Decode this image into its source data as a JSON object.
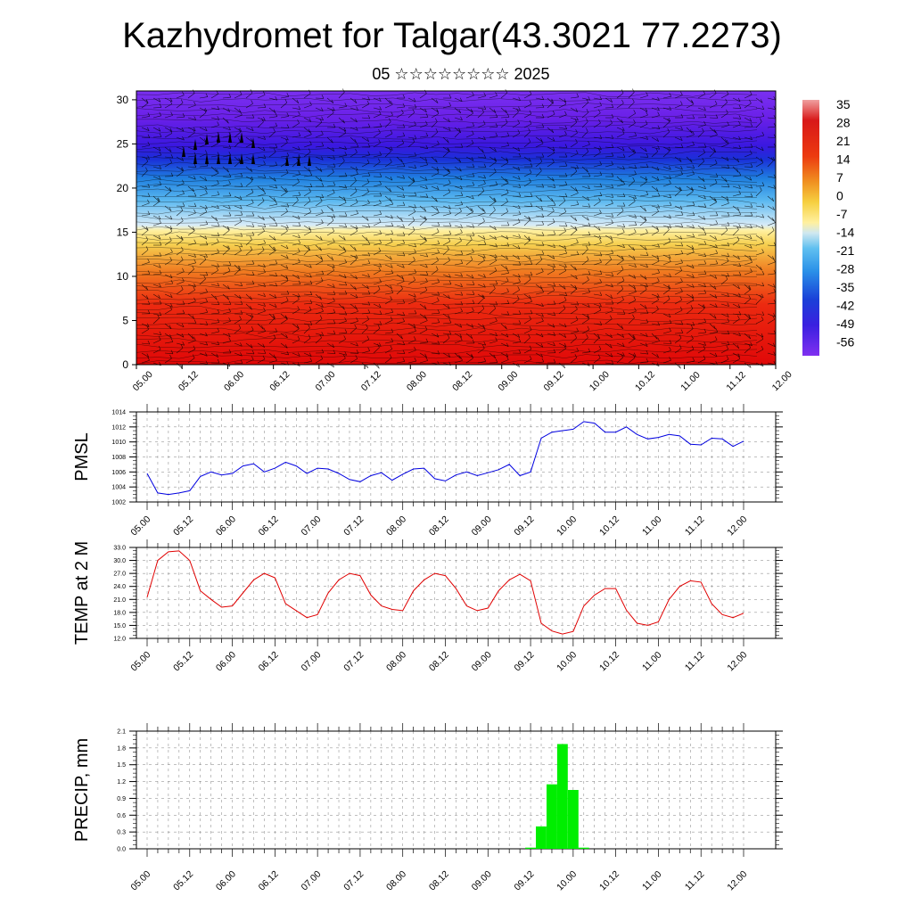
{
  "title": "Kazhydromet for Talgar(43.3021 77.2273)",
  "subtitle": "05 ☆☆☆☆☆☆☆☆ 2025",
  "time_ticks": [
    "05.00",
    "05.12",
    "06.00",
    "06.12",
    "07.00",
    "07.12",
    "08.00",
    "08.12",
    "09.00",
    "09.12",
    "10.00",
    "10.12",
    "11.00",
    "11.12",
    "12.00"
  ],
  "chart_data": [
    {
      "type": "heatmap",
      "name_hint": "temperature-height cross section with wind barbs",
      "x_ticks": [
        "05.00",
        "05.12",
        "06.00",
        "06.12",
        "07.00",
        "07.12",
        "08.00",
        "08.12",
        "09.00",
        "09.12",
        "10.00",
        "10.12",
        "11.00",
        "11.12",
        "12.00"
      ],
      "y_ticks": [
        0,
        5,
        10,
        15,
        20,
        25,
        30
      ],
      "ylim": [
        0,
        31
      ],
      "colorbar_labels": [
        "35",
        "28",
        "21",
        "14",
        "7",
        "0",
        "-7",
        "-14",
        "-21",
        "-28",
        "-35",
        "-42",
        "-49",
        "-56"
      ],
      "colors": {
        "hot": "#e01010",
        "mid": "#f0e060",
        "cold": "#20a0e0",
        "coldest": "#7020e0"
      }
    },
    {
      "type": "line",
      "ylabel": "PMSL",
      "ylim": [
        1002,
        1014
      ],
      "y_ticks": [
        "1002",
        "1004",
        "1006",
        "1008",
        "1010",
        "1012",
        "1014"
      ],
      "x_ticks": [
        "05.00",
        "05.12",
        "06.00",
        "06.12",
        "07.00",
        "07.12",
        "08.00",
        "08.12",
        "09.00",
        "09.12",
        "10.00",
        "10.12",
        "11.00",
        "11.12",
        "12.00"
      ],
      "color": "#0000e0",
      "values": [
        1005.8,
        1003.2,
        1003.0,
        1003.2,
        1003.5,
        1005.4,
        1006.0,
        1005.6,
        1005.8,
        1006.8,
        1007.1,
        1006.0,
        1006.5,
        1007.3,
        1006.8,
        1005.8,
        1006.5,
        1006.4,
        1005.8,
        1005.0,
        1004.7,
        1005.5,
        1005.9,
        1004.9,
        1005.7,
        1006.4,
        1006.5,
        1005.1,
        1004.8,
        1005.6,
        1006.0,
        1005.5,
        1005.9,
        1006.3,
        1007.0,
        1005.5,
        1006.0,
        1010.5,
        1011.3,
        1011.5,
        1011.7,
        1012.7,
        1012.5,
        1011.3,
        1011.3,
        1012.0,
        1011.0,
        1010.4,
        1010.6,
        1011.0,
        1010.8,
        1009.7,
        1009.6,
        1010.5,
        1010.4,
        1009.4,
        1010.1
      ]
    },
    {
      "type": "line",
      "ylabel": "TEMP at 2 M",
      "ylim": [
        12.0,
        33.0
      ],
      "y_ticks": [
        "12.0",
        "15.0",
        "18.0",
        "21.0",
        "24.0",
        "27.0",
        "30.0",
        "33.0"
      ],
      "x_ticks": [
        "05.00",
        "05.12",
        "06.00",
        "06.12",
        "07.00",
        "07.12",
        "08.00",
        "08.12",
        "09.00",
        "09.12",
        "10.00",
        "10.12",
        "11.00",
        "11.12",
        "12.00"
      ],
      "color": "#e00000",
      "values": [
        21.5,
        30.0,
        32.0,
        32.2,
        30.0,
        23.0,
        21.0,
        19.2,
        19.5,
        22.5,
        25.5,
        27.0,
        26.0,
        20.0,
        18.4,
        16.8,
        17.5,
        22.5,
        25.5,
        27.0,
        26.5,
        22.0,
        19.5,
        18.7,
        18.4,
        23.0,
        25.5,
        27.0,
        26.5,
        23.5,
        19.5,
        18.4,
        19.0,
        23.0,
        25.5,
        26.8,
        25.3,
        15.5,
        13.7,
        13.0,
        13.6,
        19.5,
        22.0,
        23.5,
        23.5,
        18.5,
        15.5,
        15.0,
        15.8,
        21.0,
        24.0,
        25.3,
        25.0,
        20.0,
        17.5,
        16.8,
        17.8
      ]
    },
    {
      "type": "bar",
      "ylabel": "PRECIP, mm",
      "ylim": [
        0.0,
        2.1
      ],
      "y_ticks": [
        "0.0",
        "0.3",
        "0.6",
        "0.9",
        "1.2",
        "1.5",
        "1.8",
        "2.1"
      ],
      "x_ticks": [
        "05.00",
        "05.12",
        "06.00",
        "06.12",
        "07.00",
        "07.12",
        "08.00",
        "08.12",
        "09.00",
        "09.12",
        "10.00",
        "10.12",
        "11.00",
        "11.12",
        "12.00"
      ],
      "color": "#00ee00",
      "values": [
        0,
        0,
        0,
        0,
        0,
        0,
        0,
        0,
        0,
        0,
        0,
        0,
        0,
        0,
        0,
        0,
        0,
        0,
        0,
        0,
        0,
        0,
        0,
        0,
        0,
        0,
        0,
        0,
        0,
        0,
        0,
        0,
        0,
        0,
        0,
        0,
        0.02,
        0.4,
        1.15,
        1.87,
        1.05,
        0.02,
        0,
        0,
        0,
        0,
        0,
        0,
        0,
        0,
        0,
        0,
        0,
        0,
        0,
        0,
        0
      ]
    }
  ]
}
